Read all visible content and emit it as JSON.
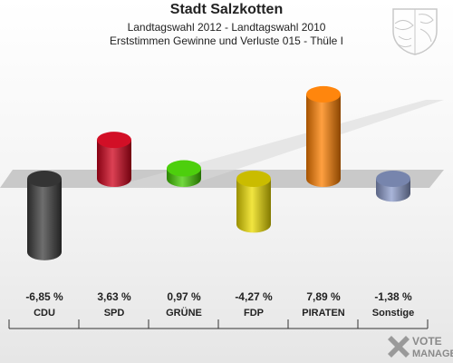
{
  "header": {
    "title": "Stadt Salzkotten",
    "subtitle1": "Landtagswahl 2012 - Landtagswahl 2010",
    "subtitle2": "Erststimmen Gewinne und Verluste 015 - Thüle I"
  },
  "logo": {
    "line1": "VOTE",
    "line2": "MANAGER",
    "icon": "vote-manager-cross-icon"
  },
  "crest": {
    "icon": "nrw-coat-of-arms-icon"
  },
  "chart_data": {
    "type": "bar",
    "title": "Stadt Salzkotten",
    "xlabel": "",
    "ylabel": "",
    "categories": [
      "CDU",
      "SPD",
      "GRÜNE",
      "FDP",
      "PIRATEN",
      "Sonstige"
    ],
    "values": [
      -6.85,
      3.63,
      0.97,
      -4.27,
      7.89,
      -1.38
    ],
    "value_labels": [
      "-6,85 %",
      "3,63 %",
      "0,97 %",
      "-4,27 %",
      "7,89 %",
      "-1,38 %"
    ],
    "colors": [
      "#3d3d3d",
      "#d0021b",
      "#44cc00",
      "#eedd00",
      "#ff8000",
      "#8c9ccc"
    ],
    "ylim": [
      -8,
      10
    ],
    "grid": false,
    "legend": "none"
  }
}
